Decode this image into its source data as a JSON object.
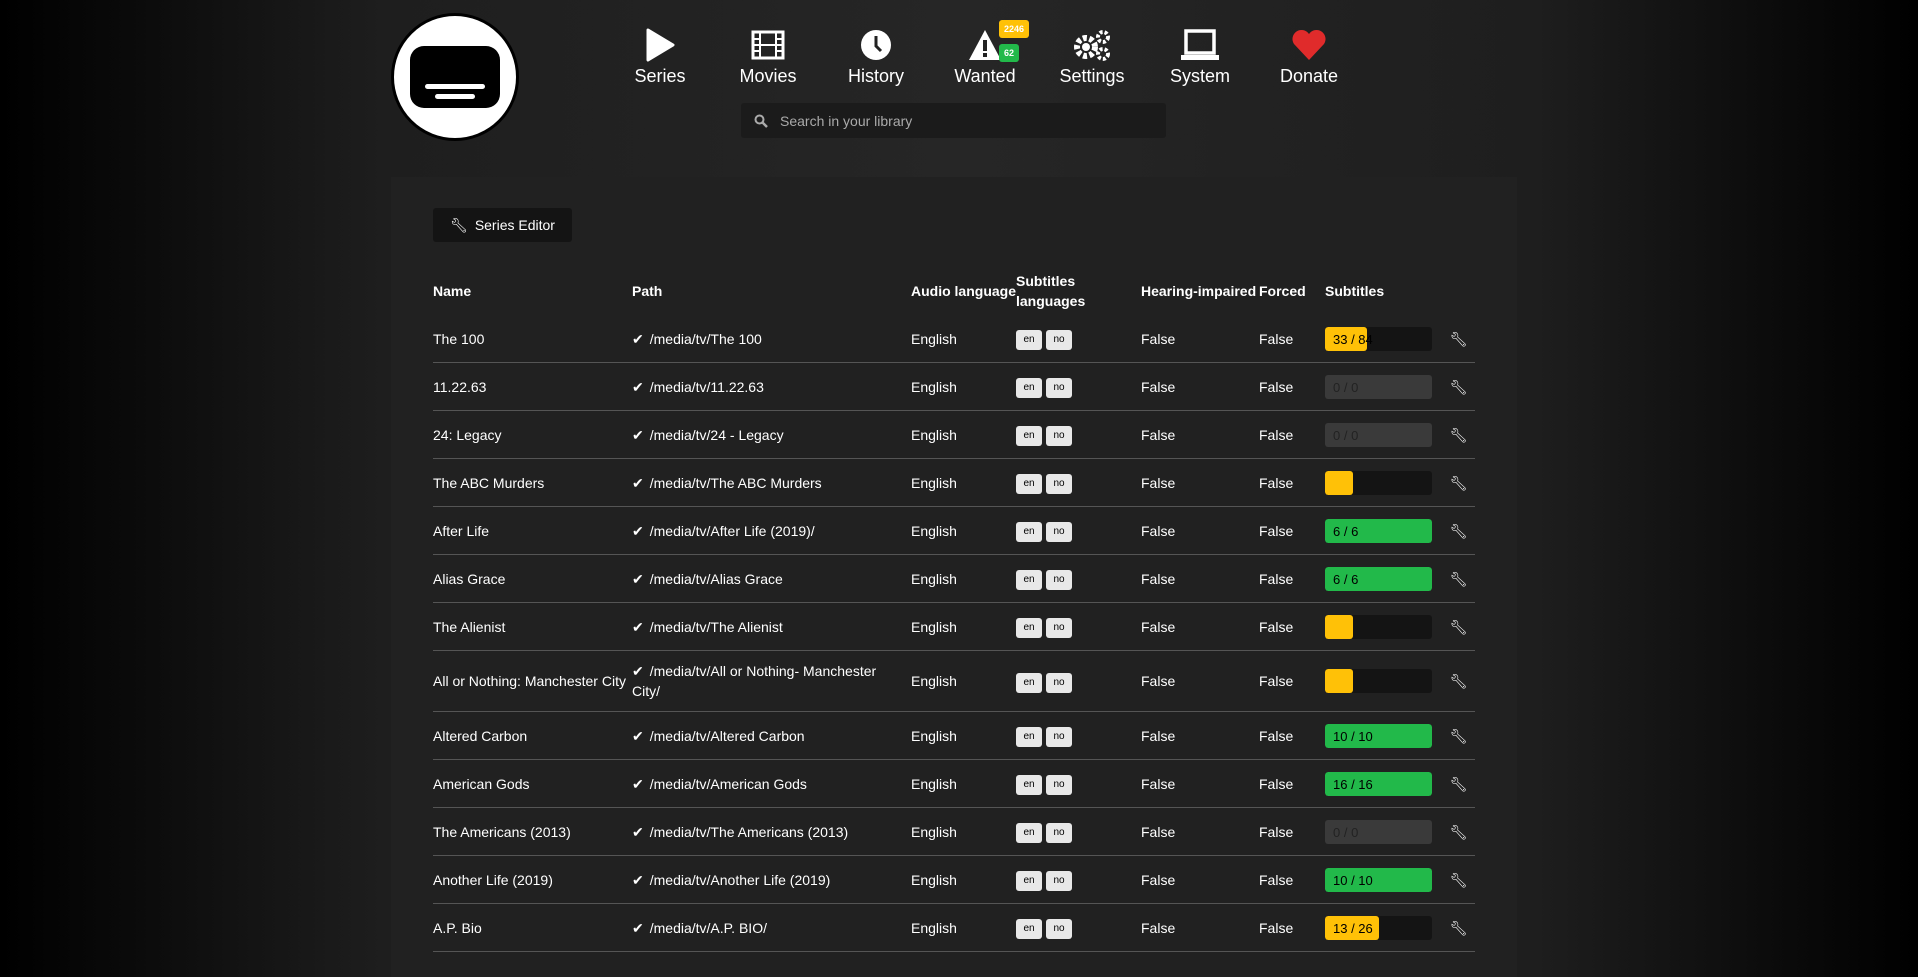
{
  "colors": {
    "warning": "#ffc107",
    "success": "#22b94a",
    "empty": "#3a3a3a",
    "heart": "#e02b2b"
  },
  "nav": [
    {
      "label": "Series",
      "icon": "play-icon"
    },
    {
      "label": "Movies",
      "icon": "film-icon"
    },
    {
      "label": "History",
      "icon": "clock-icon"
    },
    {
      "label": "Wanted",
      "icon": "warning-icon",
      "badges": [
        "2246",
        "62"
      ]
    },
    {
      "label": "Settings",
      "icon": "gears-icon"
    },
    {
      "label": "System",
      "icon": "laptop-icon"
    },
    {
      "label": "Donate",
      "icon": "heart-icon"
    }
  ],
  "search": {
    "placeholder": "Search in your library"
  },
  "toolbar": {
    "series_editor_label": "Series Editor"
  },
  "table": {
    "columns": [
      "Name",
      "Path",
      "Audio language",
      "Subtitles languages",
      "Hearing-impaired",
      "Forced",
      "Subtitles"
    ],
    "rows": [
      {
        "name": "The 100",
        "path": "/media/tv/The 100",
        "audio": "English",
        "langs": [
          "en",
          "no"
        ],
        "hi": "False",
        "forced": "False",
        "subs": "33 / 84",
        "progress": 0.39,
        "status": "warning"
      },
      {
        "name": "11.22.63",
        "path": "/media/tv/11.22.63",
        "audio": "English",
        "langs": [
          "en",
          "no"
        ],
        "hi": "False",
        "forced": "False",
        "subs": "0 / 0",
        "progress": 0,
        "status": "empty"
      },
      {
        "name": "24: Legacy",
        "path": "/media/tv/24 - Legacy",
        "audio": "English",
        "langs": [
          "en",
          "no"
        ],
        "hi": "False",
        "forced": "False",
        "subs": "0 / 0",
        "progress": 0,
        "status": "empty"
      },
      {
        "name": "The ABC Murders",
        "path": "/media/tv/The ABC Murders",
        "audio": "English",
        "langs": [
          "en",
          "no"
        ],
        "hi": "False",
        "forced": "False",
        "subs": "",
        "progress": 0.26,
        "status": "warning"
      },
      {
        "name": "After Life",
        "path": "/media/tv/After Life (2019)/",
        "audio": "English",
        "langs": [
          "en",
          "no"
        ],
        "hi": "False",
        "forced": "False",
        "subs": "6 / 6",
        "progress": 1,
        "status": "success"
      },
      {
        "name": "Alias Grace",
        "path": "/media/tv/Alias Grace",
        "audio": "English",
        "langs": [
          "en",
          "no"
        ],
        "hi": "False",
        "forced": "False",
        "subs": "6 / 6",
        "progress": 1,
        "status": "success"
      },
      {
        "name": "The Alienist",
        "path": "/media/tv/The Alienist",
        "audio": "English",
        "langs": [
          "en",
          "no"
        ],
        "hi": "False",
        "forced": "False",
        "subs": "",
        "progress": 0.26,
        "status": "warning"
      },
      {
        "name": "All or Nothing: Manchester City",
        "path": "/media/tv/All or Nothing- Manchester City/",
        "audio": "English",
        "langs": [
          "en",
          "no"
        ],
        "hi": "False",
        "forced": "False",
        "subs": "",
        "progress": 0.26,
        "status": "warning"
      },
      {
        "name": "Altered Carbon",
        "path": "/media/tv/Altered Carbon",
        "audio": "English",
        "langs": [
          "en",
          "no"
        ],
        "hi": "False",
        "forced": "False",
        "subs": "10 / 10",
        "progress": 1,
        "status": "success"
      },
      {
        "name": "American Gods",
        "path": "/media/tv/American Gods",
        "audio": "English",
        "langs": [
          "en",
          "no"
        ],
        "hi": "False",
        "forced": "False",
        "subs": "16 / 16",
        "progress": 1,
        "status": "success"
      },
      {
        "name": "The Americans (2013)",
        "path": "/media/tv/The Americans (2013)",
        "audio": "English",
        "langs": [
          "en",
          "no"
        ],
        "hi": "False",
        "forced": "False",
        "subs": "0 / 0",
        "progress": 0,
        "status": "empty"
      },
      {
        "name": "Another Life (2019)",
        "path": "/media/tv/Another Life (2019)",
        "audio": "English",
        "langs": [
          "en",
          "no"
        ],
        "hi": "False",
        "forced": "False",
        "subs": "10 / 10",
        "progress": 1,
        "status": "success"
      },
      {
        "name": "A.P. Bio",
        "path": "/media/tv/A.P. BIO/",
        "audio": "English",
        "langs": [
          "en",
          "no"
        ],
        "hi": "False",
        "forced": "False",
        "subs": "13 / 26",
        "progress": 0.5,
        "status": "warning"
      }
    ]
  }
}
